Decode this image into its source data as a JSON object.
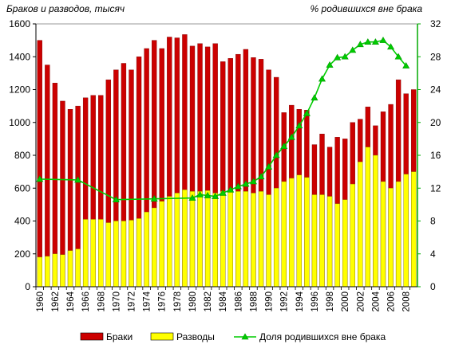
{
  "chart_data": {
    "type": "bar",
    "title_left": "Браков и разводов, тысяч",
    "title_right": "% родившихся вне брака",
    "x": [
      1960,
      1961,
      1962,
      1963,
      1964,
      1965,
      1966,
      1967,
      1968,
      1969,
      1970,
      1971,
      1972,
      1973,
      1974,
      1975,
      1976,
      1977,
      1978,
      1979,
      1980,
      1981,
      1982,
      1983,
      1984,
      1985,
      1986,
      1987,
      1988,
      1989,
      1990,
      1991,
      1992,
      1993,
      1994,
      1995,
      1996,
      1997,
      1998,
      1999,
      2000,
      2001,
      2002,
      2003,
      2004,
      2005,
      2006,
      2007,
      2008,
      2009
    ],
    "x_tick_labels": [
      "1960",
      "1962",
      "1964",
      "1966",
      "1968",
      "1970",
      "1972",
      "1974",
      "1976",
      "1978",
      "1980",
      "1982",
      "1984",
      "1986",
      "1988",
      "1990",
      "1992",
      "1994",
      "1996",
      "1998",
      "2000",
      "2002",
      "2004",
      "2006",
      "2008"
    ],
    "y_left_ticks": [
      "0",
      "200",
      "400",
      "600",
      "800",
      "1000",
      "1200",
      "1400",
      "1600"
    ],
    "y_right_ticks": [
      "0",
      "4",
      "8",
      "12",
      "16",
      "20",
      "24",
      "28",
      "32"
    ],
    "ylim_left": [
      0,
      1600
    ],
    "ylim_right": [
      0,
      32
    ],
    "grid": false,
    "legend_position": "bottom",
    "series": [
      {
        "name": "Браки",
        "kind": "bar",
        "axis": "left",
        "color": "#cc0000",
        "values": [
          1500,
          1350,
          1240,
          1130,
          1080,
          1100,
          1150,
          1165,
          1165,
          1260,
          1320,
          1360,
          1320,
          1400,
          1450,
          1500,
          1450,
          1520,
          1515,
          1535,
          1465,
          1480,
          1460,
          1480,
          1370,
          1390,
          1415,
          1445,
          1395,
          1385,
          1320,
          1275,
          1060,
          1105,
          1080,
          1075,
          865,
          930,
          850,
          910,
          900,
          1000,
          1020,
          1095,
          980,
          1065,
          1110,
          1260,
          1175,
          1200
        ]
      },
      {
        "name": "Разводы",
        "kind": "bar",
        "axis": "left",
        "color": "#ffff00",
        "values": [
          180,
          185,
          200,
          195,
          220,
          230,
          410,
          410,
          410,
          390,
          400,
          400,
          405,
          415,
          455,
          480,
          520,
          550,
          570,
          590,
          580,
          580,
          585,
          570,
          580,
          580,
          580,
          580,
          570,
          580,
          560,
          600,
          640,
          660,
          680,
          665,
          560,
          560,
          550,
          505,
          530,
          625,
          760,
          850,
          800,
          640,
          600,
          640,
          685,
          700
        ]
      },
      {
        "name": "Доля родившихся вне брака",
        "kind": "line",
        "axis": "right",
        "color": "#00cc00",
        "x": [
          1960,
          1965,
          1970,
          1975,
          1980,
          1981,
          1982,
          1983,
          1984,
          1985,
          1986,
          1987,
          1988,
          1989,
          1990,
          1991,
          1992,
          1993,
          1994,
          1995,
          1996,
          1997,
          1998,
          1999,
          2000,
          2001,
          2002,
          2003,
          2004,
          2005,
          2006,
          2007,
          2008
        ],
        "values": [
          13.1,
          13.0,
          10.6,
          10.7,
          10.8,
          11.2,
          11.1,
          11.0,
          11.4,
          11.8,
          12.2,
          12.5,
          12.8,
          13.4,
          14.6,
          16.0,
          17.1,
          18.2,
          19.6,
          21.1,
          23.0,
          25.3,
          27.0,
          27.9,
          28.0,
          28.8,
          29.5,
          29.8,
          29.8,
          30.0,
          29.2,
          28.0,
          26.9
        ]
      }
    ]
  },
  "legend": {
    "marriages_label": "Браки",
    "divorces_label": "Разводы",
    "outside_label": "Доля родившихся вне брака"
  }
}
